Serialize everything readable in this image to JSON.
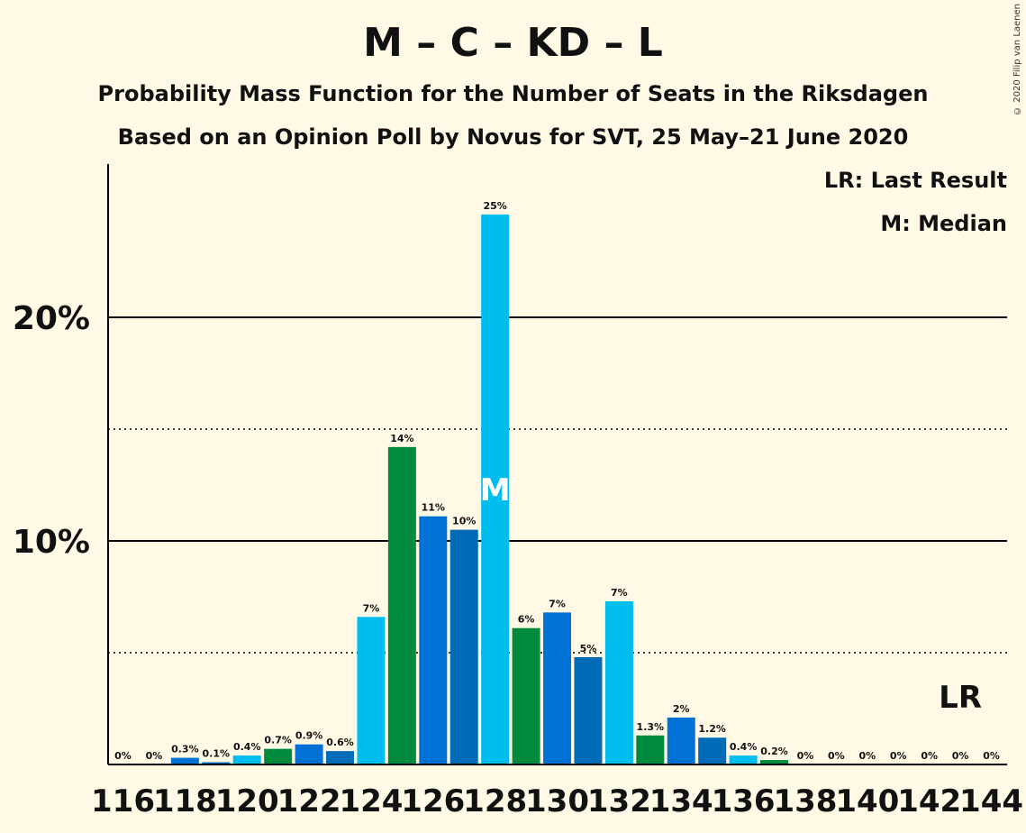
{
  "title": "M – C – KD – L",
  "subtitle_1": "Probability Mass Function for the Number of Seats in the Riksdagen",
  "subtitle_2": "Based on an Opinion Poll by Novus for SVT, 25 May–21 June 2020",
  "copyright": "© 2020 Filip van Laenen",
  "legend": {
    "last_result": "LR: Last Result",
    "median": "M: Median"
  },
  "markers": {
    "median_label": "M",
    "median_seat": 128,
    "last_result_label": "LR",
    "last_result_seat": 143
  },
  "colors": {
    "background": "#fff9e5",
    "palette": [
      "#00bdf0",
      "#008a3e",
      "#0072d6",
      "#006bb6"
    ]
  },
  "chart_data": {
    "type": "bar",
    "x": [
      116,
      117,
      118,
      119,
      120,
      121,
      122,
      123,
      124,
      125,
      126,
      127,
      128,
      129,
      130,
      131,
      132,
      133,
      134,
      135,
      136,
      137,
      138,
      139,
      140,
      141,
      142,
      143,
      144
    ],
    "values": [
      0,
      0,
      0.3,
      0.1,
      0.4,
      0.7,
      0.9,
      0.6,
      6.6,
      14.2,
      11.1,
      10.5,
      24.6,
      6.1,
      6.8,
      4.8,
      7.3,
      1.3,
      2.1,
      1.2,
      0.4,
      0.2,
      0,
      0,
      0,
      0,
      0,
      0,
      0
    ],
    "data_labels": [
      "0%",
      "0%",
      "0.3%",
      "0.1%",
      "0.4%",
      "0.7%",
      "0.9%",
      "0.6%",
      "7%",
      "14%",
      "11%",
      "10%",
      "25%",
      "6%",
      "7%",
      "5%",
      "7%",
      "1.3%",
      "2%",
      "1.2%",
      "0.4%",
      "0.2%",
      "0%",
      "0%",
      "0%",
      "0%",
      "0%",
      "0%",
      "0%"
    ],
    "x_tick_labels": [
      "116",
      "118",
      "120",
      "122",
      "124",
      "126",
      "128",
      "130",
      "132",
      "134",
      "136",
      "138",
      "140",
      "142",
      "144"
    ],
    "y_tick_labels": [
      "10%",
      "20%"
    ],
    "ylim": [
      0,
      27
    ],
    "solid_gridlines": [
      10,
      20
    ],
    "dotted_gridlines": [
      5,
      15
    ]
  }
}
